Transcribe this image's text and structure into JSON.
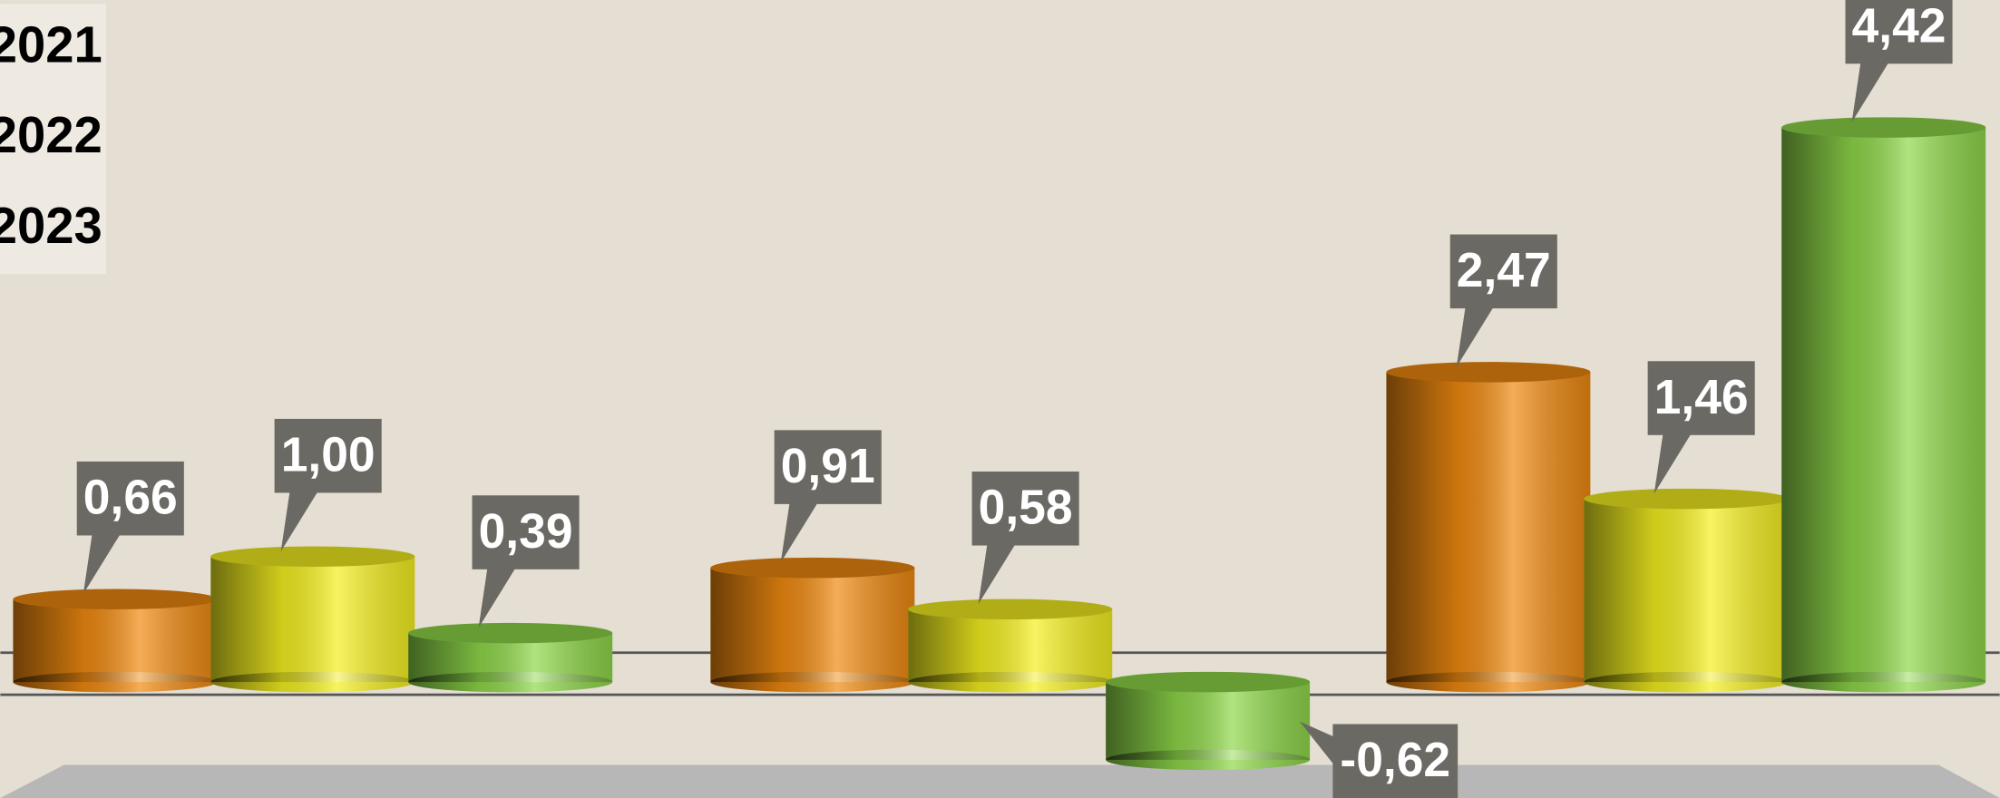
{
  "chart_data": {
    "type": "bar",
    "categories": [
      null,
      null,
      null
    ],
    "series": [
      {
        "name": "2021",
        "color": "#f08a10",
        "values": [
          0.66,
          0.91,
          2.47
        ],
        "value_labels": [
          "0,66",
          "0,91",
          "2,47"
        ]
      },
      {
        "name": "2022",
        "color": "#f4f020",
        "values": [
          1.0,
          0.58,
          1.46
        ],
        "value_labels": [
          "1,00",
          "0,58",
          "1,46"
        ]
      },
      {
        "name": "2023",
        "color": "#8fd84a",
        "values": [
          0.39,
          -0.62,
          4.42
        ],
        "value_labels": [
          "0,39",
          "-0,62",
          "4,42"
        ]
      }
    ]
  }
}
